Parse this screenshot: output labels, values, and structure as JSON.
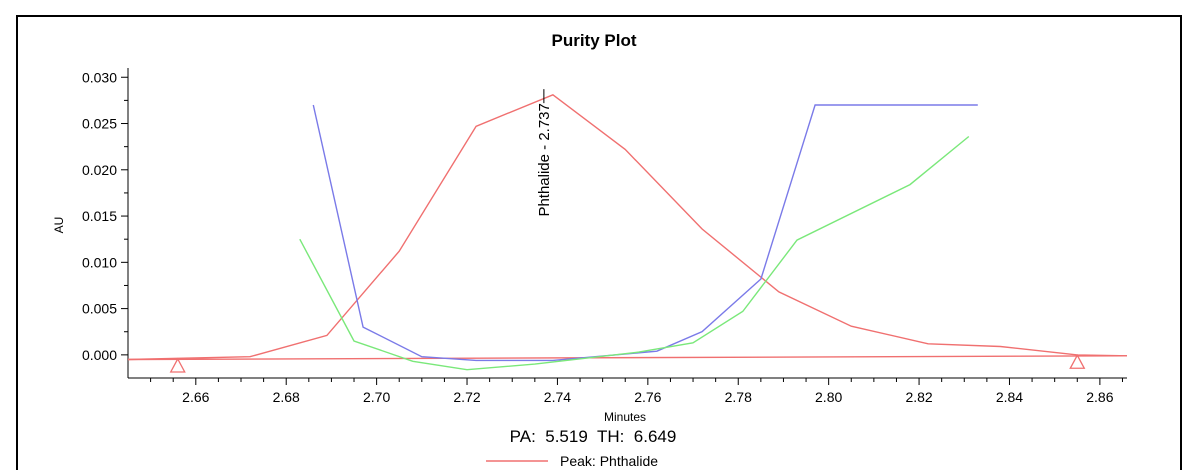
{
  "chart_data": {
    "type": "line",
    "title": "Purity Plot",
    "xlabel": "Minutes",
    "ylabel": "AU",
    "xlim": [
      2.645,
      2.866
    ],
    "ylim": [
      -0.0025,
      0.031
    ],
    "x_ticks": [
      "2.66",
      "2.68",
      "2.70",
      "2.72",
      "2.74",
      "2.76",
      "2.78",
      "2.80",
      "2.82",
      "2.84",
      "2.86"
    ],
    "x_tick_values": [
      2.66,
      2.68,
      2.7,
      2.72,
      2.74,
      2.76,
      2.78,
      2.8,
      2.82,
      2.84,
      2.86
    ],
    "y_ticks": [
      "0.030",
      "0.025",
      "0.020",
      "0.015",
      "0.010",
      "0.005",
      "0.000"
    ],
    "y_tick_values": [
      0.03,
      0.025,
      0.02,
      0.015,
      0.01,
      0.005,
      0.0
    ],
    "grid": false,
    "legend_position": "bottom-center",
    "series": [
      {
        "name": "Peak: Phthalide",
        "color": "#f07070",
        "x": [
          2.645,
          2.672,
          2.689,
          2.705,
          2.722,
          2.739,
          2.755,
          2.772,
          2.789,
          2.805,
          2.822,
          2.838,
          2.855,
          2.866
        ],
        "y": [
          -0.0005,
          -0.0002,
          0.0021,
          0.0112,
          0.0247,
          0.0281,
          0.0222,
          0.0136,
          0.0068,
          0.0031,
          0.0012,
          0.0009,
          0.0,
          -0.0001
        ]
      },
      {
        "color": "#f07070",
        "x": [
          2.645,
          2.866
        ],
        "y": [
          -0.0005,
          -0.0001
        ]
      },
      {
        "color": "#7a7ae8",
        "x": [
          2.686,
          2.697,
          2.71,
          2.722,
          2.739,
          2.762,
          2.772,
          2.785,
          2.797,
          2.833
        ],
        "y": [
          0.027,
          0.003,
          -0.0002,
          -0.0006,
          -0.0006,
          0.0004,
          0.0025,
          0.0082,
          0.027,
          0.027
        ]
      },
      {
        "color": "#7ae87a",
        "x": [
          2.683,
          2.695,
          2.708,
          2.72,
          2.735,
          2.758,
          2.77,
          2.781,
          2.793,
          2.818,
          2.831
        ],
        "y": [
          0.0125,
          0.0015,
          -0.0007,
          -0.0016,
          -0.001,
          0.0003,
          0.0013,
          0.0047,
          0.0124,
          0.0184,
          0.0236
        ]
      }
    ],
    "markers": [
      {
        "x": 2.656,
        "y": -0.0012,
        "shape": "triangle",
        "color": "#f07070"
      },
      {
        "x": 2.855,
        "y": -0.0008,
        "shape": "triangle",
        "color": "#f07070"
      }
    ],
    "annotations": [
      {
        "text": "Phthalide - 2.737",
        "x": 2.737,
        "y": 0.0285,
        "orientation": "vertical"
      }
    ],
    "info_text": "PA:  5.519  TH:  6.649"
  }
}
